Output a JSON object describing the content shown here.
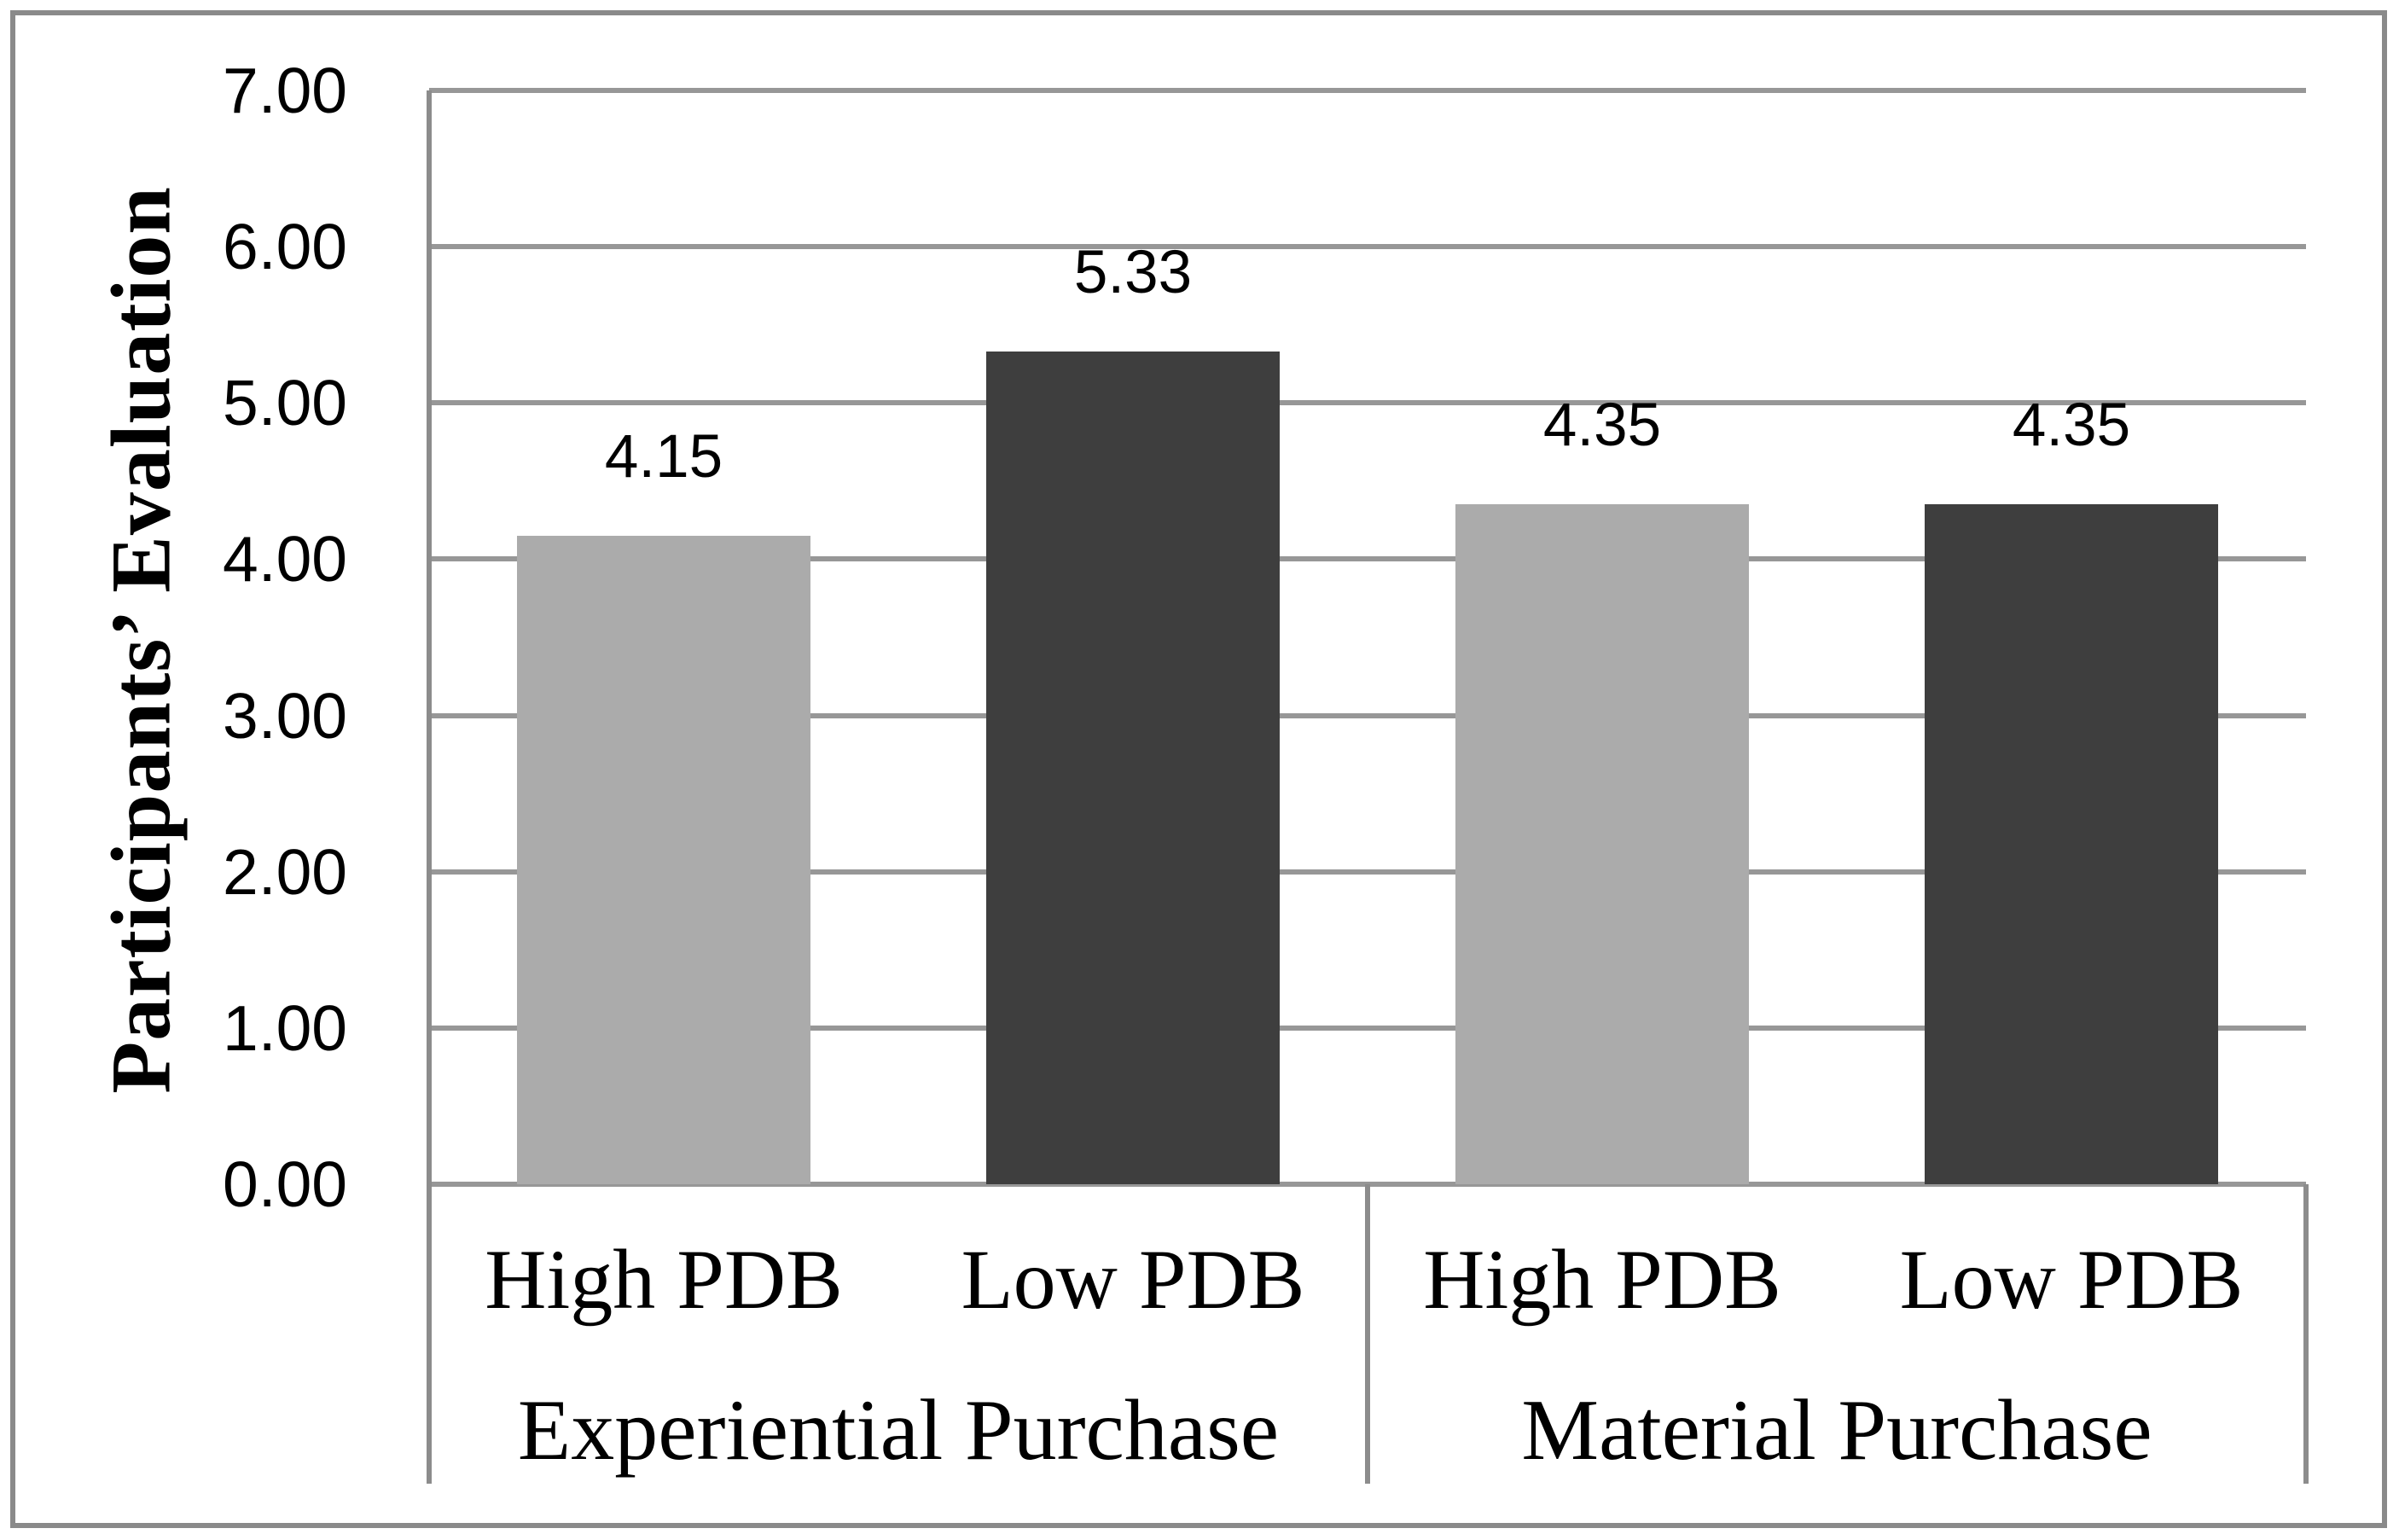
{
  "figure": {
    "kind": "statistical bar chart figure",
    "background": "#ffffff",
    "frame_color": "#8a8a8a"
  },
  "chart_data": {
    "type": "bar",
    "title": "",
    "xlabel": "",
    "ylabel": "Participants’ Evaluation",
    "ylim": [
      0,
      7
    ],
    "ytick_step": 1.0,
    "yticks": [
      {
        "value": 0,
        "label": "0.00"
      },
      {
        "value": 1,
        "label": "1.00"
      },
      {
        "value": 2,
        "label": "2.00"
      },
      {
        "value": 3,
        "label": "3.00"
      },
      {
        "value": 4,
        "label": "4.00"
      },
      {
        "value": 5,
        "label": "5.00"
      },
      {
        "value": 6,
        "label": "6.00"
      },
      {
        "value": 7,
        "label": "7.00"
      }
    ],
    "grid": true,
    "legend": "none",
    "gridline_color": "#979797",
    "axis_color": "#8c8c8c",
    "groups": [
      {
        "label": "Experiential Purchase",
        "bars": [
          {
            "category": "High PDB",
            "value": 4.15,
            "display": "4.15",
            "color": "#ABABAB"
          },
          {
            "category": "Low PDB",
            "value": 5.33,
            "display": "5.33",
            "color": "#3E3E3E"
          }
        ]
      },
      {
        "label": "Material Purchase",
        "bars": [
          {
            "category": "High PDB",
            "value": 4.35,
            "display": "4.35",
            "color": "#ABABAB"
          },
          {
            "category": "Low PDB",
            "value": 4.35,
            "display": "4.35",
            "color": "#3E3E3E"
          }
        ]
      }
    ]
  }
}
